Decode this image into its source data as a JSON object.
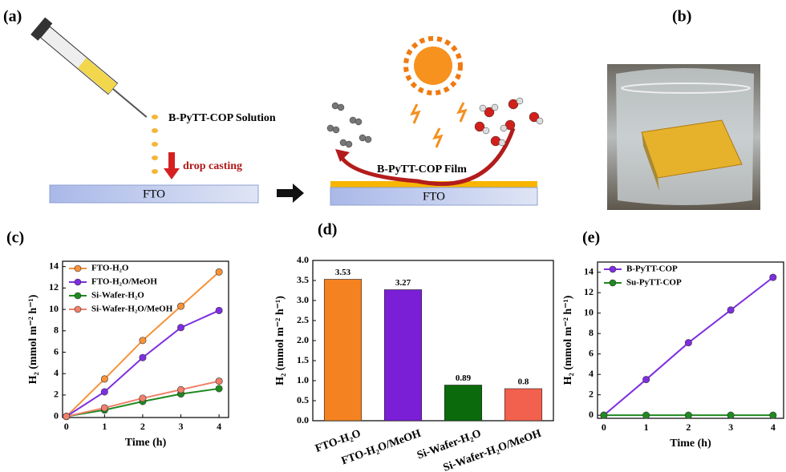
{
  "panel_labels": [
    "(a)",
    "(b)",
    "(c)",
    "(d)",
    "(e)"
  ],
  "schematic": {
    "solution_label": "B-PyTT-COP Solution",
    "step_label": "drop casting",
    "substrate_label": "FTO",
    "film_label": "B-PyTT-COP Film",
    "substrate_label_2": "FTO"
  },
  "chart_data": [
    {
      "type": "line",
      "xlabel": "Time (h)",
      "ylabel": "H₂ (mmol m⁻² h⁻¹)",
      "x": [
        0,
        1,
        2,
        3,
        4
      ],
      "xlim": [
        -0.1,
        4.25
      ],
      "xticks": [
        0,
        1,
        2,
        3,
        4
      ],
      "ylim": [
        -0.1,
        14.5
      ],
      "yticks": [
        0,
        2,
        4,
        6,
        8,
        10,
        12,
        14
      ],
      "legend": "upper left",
      "series": [
        {
          "name": "FTO-H₂O",
          "color": "#f7923a",
          "values": [
            0,
            3.5,
            7.1,
            10.3,
            13.5
          ]
        },
        {
          "name": "FTO-H₂O/MeOH",
          "color": "#7d2ee0",
          "values": [
            0,
            2.3,
            5.5,
            8.3,
            9.9
          ]
        },
        {
          "name": "Si-Wafer-H₂O",
          "color": "#1f8a1f",
          "values": [
            0,
            0.6,
            1.4,
            2.1,
            2.6
          ]
        },
        {
          "name": "Si-Wafer-H₂O/MeOH",
          "color": "#f0806a",
          "values": [
            0,
            0.8,
            1.7,
            2.5,
            3.3
          ]
        }
      ]
    },
    {
      "type": "bar",
      "ylabel": "H₂ (mmol m⁻² h⁻¹)",
      "categories": [
        "FTO-H₂O",
        "FTO-H₂O/MeOH",
        "Si-Wafer-H₂O",
        "Si-Wafer-H₂O/MeOH"
      ],
      "values": [
        3.53,
        3.27,
        0.89,
        0.8
      ],
      "colors": [
        "#f58220",
        "#7b1fd6",
        "#0b6a0b",
        "#f2604e"
      ],
      "ylim": [
        0,
        4
      ],
      "yticks": [
        {
          "value": 0,
          "label": "0.0"
        },
        0.5,
        {
          "value": 1,
          "label": "1.0"
        },
        1.5,
        {
          "value": 2,
          "label": "2.0"
        },
        2.5,
        {
          "value": 3,
          "label": "3.0"
        },
        3.5,
        {
          "value": 4,
          "label": "4.0"
        }
      ]
    },
    {
      "type": "line",
      "xlabel": "Time (h)",
      "ylabel": "H₂ (mmol m⁻² h⁻¹)",
      "x": [
        0,
        1,
        2,
        3,
        4
      ],
      "xlim": [
        -0.15,
        4.25
      ],
      "xticks": [
        0,
        1,
        2,
        3,
        4
      ],
      "ylim": [
        -0.3,
        15
      ],
      "yticks": [
        0,
        2,
        4,
        6,
        8,
        10,
        12,
        14
      ],
      "legend": "upper left",
      "series": [
        {
          "name": "B-PyTT-COP",
          "color": "#7d2ee0",
          "values": [
            0,
            3.5,
            7.1,
            10.3,
            13.5
          ]
        },
        {
          "name": "Su-PyTT-COP",
          "color": "#1f8a1f",
          "values": [
            0,
            0,
            0,
            0,
            0
          ]
        }
      ]
    }
  ]
}
